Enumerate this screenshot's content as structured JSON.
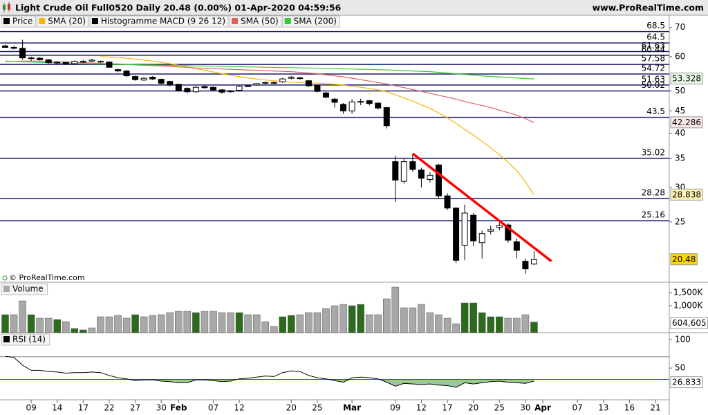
{
  "header": {
    "title": "Light Crude Oil Full0520 Daily 20.48 (0.00%) 01-Apr-2020 04:59:56",
    "site": "www.ProRealTime.com",
    "copyright": "© ProRealTime.com"
  },
  "chart_data": [
    {
      "type": "candlestick",
      "log_scale": true,
      "ylim": [
        18.3,
        74.7
      ],
      "yticks": [
        70,
        60,
        50,
        45,
        40,
        35,
        30,
        25
      ],
      "legend": "top-left",
      "categories": [
        null,
        null,
        null,
        "09",
        null,
        null,
        "14",
        null,
        null,
        "17",
        null,
        null,
        "22",
        null,
        null,
        "27",
        null,
        null,
        "30",
        null,
        "Feb",
        null,
        null,
        null,
        "07",
        null,
        null,
        "12",
        null,
        null,
        null,
        null,
        null,
        "20",
        null,
        null,
        "25",
        null,
        null,
        null,
        "Mar",
        null,
        null,
        null,
        null,
        "09",
        null,
        null,
        "12",
        null,
        null,
        "17",
        null,
        null,
        "20",
        null,
        null,
        "25",
        null,
        null,
        "30",
        null,
        "Apr",
        null,
        null,
        null,
        "07",
        null,
        null,
        "13",
        null,
        null,
        "16",
        null,
        null,
        "21"
      ],
      "series": [
        {
          "name": "Price",
          "color": "#000000",
          "up_color": "#ffffff",
          "last_box_color": "#ffd700",
          "open": [
            63.5,
            63.0,
            62.7,
            59.6,
            59.5,
            59.0,
            58.2,
            58.2,
            57.8,
            58.5,
            58.6,
            58.5,
            58.3,
            56.0,
            55.6,
            54.0,
            53.0,
            53.8,
            53.2,
            52.6,
            51.8,
            50.7,
            49.8,
            51.2,
            51.0,
            50.3,
            49.8,
            50.2,
            51.2,
            51.6,
            52.1,
            52.3,
            52.5,
            53.5,
            53.6,
            52.8,
            51.5,
            49.5,
            47.9,
            46.6,
            45.0,
            47.3,
            47.5,
            46.9,
            45.8,
            34.4,
            31.0,
            34.4,
            32.9,
            31.3,
            33.8,
            28.7,
            26.9,
            22.1,
            25.9,
            22.4,
            23.8,
            24.3,
            24.6,
            22.5,
            20.3,
            20.0,
            null,
            null,
            null,
            null,
            null,
            null,
            null,
            null,
            null,
            null,
            null,
            null,
            null,
            null
          ],
          "high": [
            64.0,
            63.5,
            65.6,
            60.0,
            59.8,
            59.2,
            58.6,
            58.4,
            58.8,
            58.9,
            59.3,
            58.8,
            58.5,
            56.3,
            55.9,
            54.3,
            53.8,
            54.1,
            53.4,
            52.8,
            52.0,
            51.0,
            51.3,
            51.5,
            51.2,
            50.5,
            50.3,
            51.6,
            51.8,
            52.2,
            52.6,
            52.6,
            53.6,
            54.2,
            53.9,
            53.0,
            51.8,
            49.8,
            48.2,
            46.9,
            47.9,
            48.0,
            47.7,
            47.1,
            46.0,
            35.5,
            34.9,
            35.7,
            33.3,
            32.5,
            34.0,
            29.1,
            27.0,
            27.4,
            26.2,
            23.9,
            24.5,
            24.9,
            24.8,
            22.9,
            20.6,
            21.4,
            null,
            null,
            null,
            null,
            null,
            null,
            null,
            null,
            null,
            null,
            null,
            null,
            null,
            null
          ],
          "low": [
            62.8,
            62.3,
            59.0,
            58.7,
            58.7,
            57.8,
            57.7,
            57.4,
            57.6,
            58.1,
            58.3,
            58.0,
            56.5,
            55.2,
            53.9,
            52.8,
            52.7,
            53.0,
            51.8,
            51.2,
            49.8,
            49.4,
            49.5,
            50.6,
            50.0,
            49.3,
            49.6,
            49.9,
            51.0,
            51.4,
            51.8,
            51.8,
            52.2,
            53.2,
            53.1,
            51.1,
            49.6,
            48.1,
            45.8,
            44.3,
            44.3,
            46.4,
            46.3,
            45.3,
            41.0,
            27.8,
            30.6,
            32.6,
            30.0,
            30.8,
            28.4,
            26.6,
            20.1,
            20.4,
            22.0,
            20.6,
            23.4,
            23.9,
            22.4,
            20.6,
            19.0,
            19.9,
            null,
            null,
            null,
            null,
            null,
            null,
            null,
            null,
            null,
            null,
            null,
            null,
            null,
            null
          ],
          "close": [
            63.0,
            62.7,
            59.6,
            59.5,
            59.0,
            58.1,
            58.2,
            57.8,
            58.5,
            58.5,
            58.9,
            58.3,
            56.7,
            55.6,
            54.2,
            53.1,
            53.5,
            53.3,
            52.1,
            51.6,
            50.1,
            49.8,
            51.0,
            50.9,
            50.3,
            49.7,
            50.0,
            51.3,
            51.4,
            52.0,
            52.3,
            52.1,
            53.3,
            53.8,
            53.4,
            51.4,
            49.9,
            48.4,
            47.1,
            45.0,
            47.2,
            47.2,
            46.8,
            45.7,
            41.6,
            31.2,
            34.4,
            33.0,
            31.5,
            32.0,
            28.7,
            26.9,
            20.4,
            26.2,
            22.6,
            23.5,
            24.0,
            24.5,
            22.7,
            21.5,
            19.5,
            20.48,
            null,
            null,
            null,
            null,
            null,
            null,
            null,
            null,
            null,
            null,
            null,
            null,
            null,
            null
          ]
        },
        {
          "name": "SMA (20)",
          "color": "#f2b705",
          "box_color": "#fff4b3",
          "values": [
            null,
            null,
            null,
            null,
            null,
            null,
            null,
            null,
            null,
            null,
            null,
            60.0,
            59.9,
            59.7,
            59.5,
            59.2,
            58.9,
            58.6,
            58.2,
            57.8,
            57.3,
            56.8,
            56.3,
            55.8,
            55.3,
            54.8,
            54.4,
            54.0,
            53.6,
            53.3,
            53.0,
            52.8,
            52.6,
            52.4,
            52.3,
            52.2,
            52.1,
            52.0,
            51.8,
            51.6,
            51.3,
            51.0,
            50.7,
            50.3,
            49.8,
            49.0,
            48.2,
            47.4,
            46.5,
            45.6,
            44.5,
            43.4,
            42.1,
            40.8,
            39.6,
            38.3,
            37.0,
            35.7,
            34.3,
            32.8,
            30.9,
            28.838,
            null,
            null,
            null,
            null,
            null,
            null,
            null,
            null,
            null,
            null,
            null,
            null,
            null,
            null
          ]
        },
        {
          "name": "Histogramme MACD (9 26 12)",
          "color": "#000000"
        },
        {
          "name": "SMA (50)",
          "color": "#e06060",
          "box_color": "#fde8e8",
          "values": [
            58.4,
            58.5,
            58.6,
            58.6,
            58.6,
            58.5,
            58.4,
            58.3,
            58.2,
            58.1,
            58.0,
            57.9,
            57.8,
            57.7,
            57.6,
            57.4,
            57.3,
            57.2,
            57.1,
            57.0,
            56.8,
            56.7,
            56.5,
            56.4,
            56.3,
            56.2,
            56.1,
            56.0,
            55.9,
            55.8,
            55.7,
            55.6,
            55.5,
            55.4,
            55.2,
            55.0,
            54.8,
            54.5,
            54.2,
            53.9,
            53.5,
            53.1,
            52.7,
            52.3,
            51.9,
            51.4,
            50.9,
            50.4,
            49.9,
            49.4,
            48.9,
            48.4,
            47.9,
            47.3,
            46.8,
            46.3,
            45.8,
            45.2,
            44.6,
            44.0,
            43.2,
            42.286,
            null,
            null,
            null,
            null,
            null,
            null,
            null,
            null,
            null,
            null,
            null,
            null,
            null,
            null
          ]
        },
        {
          "name": "SMA (200)",
          "color": "#33cc33",
          "box_color": "#e6f8e6",
          "values": [
            58.6,
            58.5,
            58.4,
            58.3,
            58.2,
            58.1,
            58.0,
            57.9,
            57.8,
            57.8,
            57.7,
            57.7,
            57.6,
            57.6,
            57.5,
            57.5,
            57.4,
            57.4,
            57.3,
            57.3,
            57.2,
            57.2,
            57.1,
            57.1,
            57.0,
            57.0,
            56.9,
            56.9,
            56.8,
            56.8,
            56.7,
            56.7,
            56.6,
            56.6,
            56.5,
            56.5,
            56.4,
            56.4,
            56.3,
            56.2,
            56.2,
            56.1,
            56.1,
            56.0,
            55.9,
            55.8,
            55.7,
            55.6,
            55.5,
            55.4,
            55.2,
            55.0,
            54.8,
            54.6,
            54.4,
            54.2,
            54.0,
            53.9,
            53.7,
            53.6,
            53.4,
            53.328,
            null,
            null,
            null,
            null,
            null,
            null,
            null,
            null,
            null,
            null,
            null,
            null,
            null,
            null
          ]
        }
      ],
      "levels": [
        68.5,
        64.5,
        61.63,
        60.44,
        57.58,
        54.72,
        51.63,
        50.02,
        43.5,
        35.02,
        28.28,
        25.16
      ],
      "level_color": "#1b1b6b",
      "trend_line": {
        "color": "#ff0000",
        "x": [
          47,
          63
        ],
        "values": [
          35.9,
          20.3
        ]
      }
    },
    {
      "type": "bar",
      "title": "Volume",
      "log_scale": true,
      "ylim": [
        435000,
        1980000
      ],
      "yticks": [
        {
          "value": 1500000,
          "label": "1,500K"
        },
        {
          "value": 1000000,
          "label": "1,000K"
        }
      ],
      "values": [
        758000,
        758000,
        1161000,
        758000,
        681000,
        681000,
        653000,
        612000,
        495000,
        474000,
        505000,
        711000,
        711000,
        742000,
        681000,
        758000,
        711000,
        742000,
        758000,
        808000,
        843000,
        843000,
        808000,
        843000,
        843000,
        808000,
        808000,
        808000,
        758000,
        758000,
        612000,
        528000,
        711000,
        742000,
        758000,
        808000,
        808000,
        918000,
        1000000,
        1043000,
        1000000,
        1043000,
        758000,
        758000,
        1238000,
        1778000,
        938000,
        938000,
        1043000,
        808000,
        758000,
        681000,
        574000,
        1089000,
        1089000,
        808000,
        711000,
        711000,
        681000,
        681000,
        758000,
        604605,
        null,
        null,
        null,
        null,
        null,
        null,
        null,
        null,
        null,
        null,
        null,
        null,
        null,
        null
      ],
      "value_labels": [
        null,
        null,
        null,
        null,
        null,
        null,
        null,
        null,
        null,
        null,
        null,
        null,
        null,
        null,
        null,
        null,
        null,
        null,
        null,
        null,
        null,
        null,
        null,
        null,
        null,
        null,
        null,
        null,
        null,
        null,
        null,
        null,
        null,
        null,
        null,
        null,
        null,
        null,
        null,
        null,
        null,
        null,
        null,
        null,
        null,
        null,
        null,
        null,
        null,
        null,
        null,
        null,
        null,
        null,
        null,
        null,
        null,
        null,
        null,
        null,
        null,
        "604,605",
        null,
        null,
        null,
        null,
        null,
        null,
        null,
        null,
        null,
        null,
        null,
        null,
        null,
        null
      ],
      "colors": [
        "#2d6a1e",
        "#a8a8a8",
        "#a8a8a8",
        "#2d6a1e",
        "#a8a8a8",
        "#a8a8a8",
        "#2d6a1e",
        "#a8a8a8",
        "#2d6a1e",
        "#2d6a1e",
        "#a8a8a8",
        "#a8a8a8",
        "#a8a8a8",
        "#a8a8a8",
        "#a8a8a8",
        "#2d6a1e",
        "#a8a8a8",
        "#a8a8a8",
        "#a8a8a8",
        "#a8a8a8",
        "#a8a8a8",
        "#a8a8a8",
        "#2d6a1e",
        "#a8a8a8",
        "#a8a8a8",
        "#a8a8a8",
        "#a8a8a8",
        "#2d6a1e",
        "#a8a8a8",
        "#a8a8a8",
        "#a8a8a8",
        "#a8a8a8",
        "#2d6a1e",
        "#2d6a1e",
        "#a8a8a8",
        "#a8a8a8",
        "#a8a8a8",
        "#a8a8a8",
        "#a8a8a8",
        "#a8a8a8",
        "#2d6a1e",
        "#2d6a1e",
        "#a8a8a8",
        "#a8a8a8",
        "#a8a8a8",
        "#a8a8a8",
        "#a8a8a8",
        "#a8a8a8",
        "#a8a8a8",
        "#a8a8a8",
        "#a8a8a8",
        "#a8a8a8",
        "#a8a8a8",
        "#2d6a1e",
        "#2d6a1e",
        "#2d6a1e",
        "#2d6a1e",
        "#2d6a1e",
        "#a8a8a8",
        "#a8a8a8",
        "#a8a8a8",
        "#2d6a1e",
        null,
        null,
        null,
        null,
        null,
        null,
        null,
        null,
        null,
        null,
        null,
        null,
        null,
        null
      ]
    },
    {
      "type": "line",
      "title": "RSI (14)",
      "ylim": [
        -6,
        110
      ],
      "yticks": [
        100,
        50
      ],
      "levels": [
        70,
        30
      ],
      "level_colors": [
        "#888888",
        "#3344aa"
      ],
      "fill_color": "#9cc79c",
      "series": [
        {
          "color": "#000000",
          "values": [
            70.5,
            69,
            55,
            46,
            46,
            44,
            43,
            41,
            42,
            42,
            43,
            42,
            37,
            33,
            31,
            28,
            29,
            29,
            27,
            26,
            24,
            24,
            29,
            29,
            28,
            26,
            27,
            31,
            32,
            34,
            36,
            35,
            42,
            45,
            44,
            37,
            33,
            31,
            28,
            25,
            33,
            34,
            33,
            31,
            25,
            18,
            23,
            22,
            21,
            22,
            20,
            19,
            16,
            24,
            22,
            24,
            26,
            27,
            25,
            24,
            23,
            26.833,
            null,
            null,
            null,
            null,
            null,
            null,
            null,
            null,
            null,
            null,
            null,
            null,
            null,
            null
          ]
        }
      ]
    }
  ]
}
